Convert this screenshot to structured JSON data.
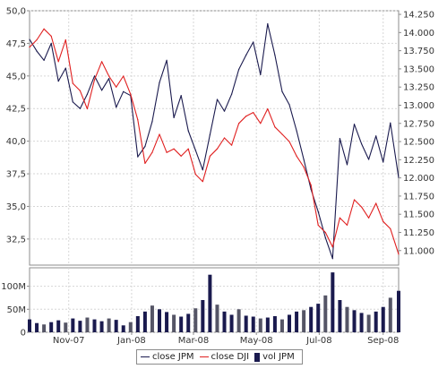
{
  "chart_data": [
    {
      "type": "line",
      "x_range": [
        "2007-09-24",
        "2008-09-16"
      ],
      "x_tick_labels": [
        "Nov-07",
        "Jan-08",
        "Mar-08",
        "May-08",
        "Jul-08",
        "Sep-08"
      ],
      "ylim": [
        30.5,
        50
      ],
      "y_ticks": [
        "32,5",
        "35,0",
        "37,5",
        "40,0",
        "42,5",
        "45,0",
        "47,5",
        "50,0"
      ],
      "y2lim": [
        10.8,
        14.3
      ],
      "y2_ticks": [
        "11.000",
        "11.250",
        "11.500",
        "11.750",
        "12.000",
        "12.250",
        "12.500",
        "12.750",
        "13.000",
        "13.250",
        "13.500",
        "13.750",
        "14.000",
        "14.250"
      ],
      "grid": true,
      "series": [
        {
          "name": "close JPM",
          "axis": "left",
          "color": "#1a1a4e",
          "points": [
            [
              "2007-09-24",
              47.8
            ],
            [
              "2007-10-01",
              46.9
            ],
            [
              "2007-10-08",
              46.2
            ],
            [
              "2007-10-15",
              47.5
            ],
            [
              "2007-10-22",
              44.6
            ],
            [
              "2007-10-29",
              45.6
            ],
            [
              "2007-11-05",
              43.0
            ],
            [
              "2007-11-12",
              42.5
            ],
            [
              "2007-11-19",
              43.6
            ],
            [
              "2007-11-26",
              45.0
            ],
            [
              "2007-12-03",
              43.9
            ],
            [
              "2007-12-10",
              44.8
            ],
            [
              "2007-12-17",
              42.6
            ],
            [
              "2007-12-24",
              43.8
            ],
            [
              "2007-12-31",
              43.5
            ],
            [
              "2008-01-07",
              38.8
            ],
            [
              "2008-01-14",
              39.6
            ],
            [
              "2008-01-21",
              41.5
            ],
            [
              "2008-01-28",
              44.5
            ],
            [
              "2008-02-04",
              46.2
            ],
            [
              "2008-02-11",
              41.8
            ],
            [
              "2008-02-18",
              43.5
            ],
            [
              "2008-02-25",
              40.8
            ],
            [
              "2008-03-03",
              39.3
            ],
            [
              "2008-03-10",
              37.8
            ],
            [
              "2008-03-17",
              40.5
            ],
            [
              "2008-03-24",
              43.2
            ],
            [
              "2008-03-31",
              42.3
            ],
            [
              "2008-04-07",
              43.6
            ],
            [
              "2008-04-14",
              45.5
            ],
            [
              "2008-04-21",
              46.6
            ],
            [
              "2008-04-28",
              47.6
            ],
            [
              "2008-05-05",
              45.1
            ],
            [
              "2008-05-12",
              49.0
            ],
            [
              "2008-05-19",
              46.6
            ],
            [
              "2008-05-26",
              43.8
            ],
            [
              "2008-06-02",
              42.8
            ],
            [
              "2008-06-09",
              40.8
            ],
            [
              "2008-06-16",
              38.6
            ],
            [
              "2008-06-23",
              36.3
            ],
            [
              "2008-06-30",
              34.6
            ],
            [
              "2008-07-07",
              32.6
            ],
            [
              "2008-07-14",
              31.0
            ],
            [
              "2008-07-21",
              40.2
            ],
            [
              "2008-07-28",
              38.2
            ],
            [
              "2008-08-04",
              41.3
            ],
            [
              "2008-08-11",
              39.8
            ],
            [
              "2008-08-18",
              38.6
            ],
            [
              "2008-08-25",
              40.4
            ],
            [
              "2008-09-01",
              38.4
            ],
            [
              "2008-09-08",
              41.4
            ],
            [
              "2008-09-16",
              37.2
            ]
          ]
        },
        {
          "name": "close DJI",
          "axis": "right",
          "color": "#e02020",
          "points": [
            [
              "2007-09-24",
              13.8
            ],
            [
              "2007-10-01",
              13.9
            ],
            [
              "2007-10-08",
              14.05
            ],
            [
              "2007-10-15",
              13.95
            ],
            [
              "2007-10-22",
              13.6
            ],
            [
              "2007-10-29",
              13.9
            ],
            [
              "2007-11-05",
              13.3
            ],
            [
              "2007-11-12",
              13.2
            ],
            [
              "2007-11-19",
              12.95
            ],
            [
              "2007-11-26",
              13.35
            ],
            [
              "2007-12-03",
              13.6
            ],
            [
              "2007-12-10",
              13.4
            ],
            [
              "2007-12-17",
              13.25
            ],
            [
              "2007-12-24",
              13.4
            ],
            [
              "2007-12-31",
              13.15
            ],
            [
              "2008-01-07",
              12.8
            ],
            [
              "2008-01-14",
              12.2
            ],
            [
              "2008-01-21",
              12.35
            ],
            [
              "2008-01-28",
              12.6
            ],
            [
              "2008-02-04",
              12.35
            ],
            [
              "2008-02-11",
              12.4
            ],
            [
              "2008-02-18",
              12.3
            ],
            [
              "2008-02-25",
              12.4
            ],
            [
              "2008-03-03",
              12.05
            ],
            [
              "2008-03-10",
              11.95
            ],
            [
              "2008-03-17",
              12.3
            ],
            [
              "2008-03-24",
              12.4
            ],
            [
              "2008-03-31",
              12.55
            ],
            [
              "2008-04-07",
              12.45
            ],
            [
              "2008-04-14",
              12.75
            ],
            [
              "2008-04-21",
              12.85
            ],
            [
              "2008-04-28",
              12.9
            ],
            [
              "2008-05-05",
              12.75
            ],
            [
              "2008-05-12",
              12.95
            ],
            [
              "2008-05-19",
              12.7
            ],
            [
              "2008-05-26",
              12.6
            ],
            [
              "2008-06-02",
              12.5
            ],
            [
              "2008-06-09",
              12.3
            ],
            [
              "2008-06-16",
              12.15
            ],
            [
              "2008-06-23",
              11.9
            ],
            [
              "2008-06-30",
              11.35
            ],
            [
              "2008-07-07",
              11.25
            ],
            [
              "2008-07-14",
              11.05
            ],
            [
              "2008-07-21",
              11.45
            ],
            [
              "2008-07-28",
              11.35
            ],
            [
              "2008-08-04",
              11.7
            ],
            [
              "2008-08-11",
              11.6
            ],
            [
              "2008-08-18",
              11.45
            ],
            [
              "2008-08-25",
              11.65
            ],
            [
              "2008-09-01",
              11.4
            ],
            [
              "2008-09-08",
              11.3
            ],
            [
              "2008-09-16",
              10.95
            ]
          ]
        }
      ]
    },
    {
      "type": "bar",
      "x_range": [
        "2007-09-24",
        "2008-09-16"
      ],
      "ylim": [
        0,
        140000000
      ],
      "y_ticks": [
        "0",
        "50M",
        "100M"
      ],
      "grid": true,
      "series": [
        {
          "name": "vol JPM",
          "color": "#1a1a4e",
          "points": [
            [
              "2007-09-24",
              28000000
            ],
            [
              "2007-10-01",
              20000000
            ],
            [
              "2007-10-08",
              17000000
            ],
            [
              "2007-10-15",
              22000000
            ],
            [
              "2007-10-22",
              26000000
            ],
            [
              "2007-10-29",
              21000000
            ],
            [
              "2007-11-05",
              30000000
            ],
            [
              "2007-11-12",
              25000000
            ],
            [
              "2007-11-19",
              32000000
            ],
            [
              "2007-11-26",
              28000000
            ],
            [
              "2007-12-03",
              24000000
            ],
            [
              "2007-12-10",
              30000000
            ],
            [
              "2007-12-17",
              27000000
            ],
            [
              "2007-12-24",
              15000000
            ],
            [
              "2007-12-31",
              22000000
            ],
            [
              "2008-01-07",
              35000000
            ],
            [
              "2008-01-14",
              45000000
            ],
            [
              "2008-01-21",
              58000000
            ],
            [
              "2008-01-28",
              50000000
            ],
            [
              "2008-02-04",
              44000000
            ],
            [
              "2008-02-11",
              38000000
            ],
            [
              "2008-02-18",
              34000000
            ],
            [
              "2008-02-25",
              40000000
            ],
            [
              "2008-03-03",
              52000000
            ],
            [
              "2008-03-10",
              70000000
            ],
            [
              "2008-03-17",
              125000000
            ],
            [
              "2008-03-24",
              60000000
            ],
            [
              "2008-03-31",
              45000000
            ],
            [
              "2008-04-07",
              38000000
            ],
            [
              "2008-04-14",
              50000000
            ],
            [
              "2008-04-21",
              36000000
            ],
            [
              "2008-04-28",
              34000000
            ],
            [
              "2008-05-05",
              30000000
            ],
            [
              "2008-05-12",
              32000000
            ],
            [
              "2008-05-19",
              35000000
            ],
            [
              "2008-05-26",
              28000000
            ],
            [
              "2008-06-02",
              38000000
            ],
            [
              "2008-06-09",
              45000000
            ],
            [
              "2008-06-16",
              48000000
            ],
            [
              "2008-06-23",
              55000000
            ],
            [
              "2008-06-30",
              62000000
            ],
            [
              "2008-07-07",
              80000000
            ],
            [
              "2008-07-14",
              130000000
            ],
            [
              "2008-07-21",
              70000000
            ],
            [
              "2008-07-28",
              55000000
            ],
            [
              "2008-08-04",
              48000000
            ],
            [
              "2008-08-11",
              42000000
            ],
            [
              "2008-08-18",
              38000000
            ],
            [
              "2008-08-25",
              45000000
            ],
            [
              "2008-09-01",
              55000000
            ],
            [
              "2008-09-08",
              75000000
            ],
            [
              "2008-09-16",
              90000000
            ]
          ]
        }
      ]
    }
  ],
  "legend": {
    "jpm_label": "close JPM",
    "dji_label": "close DJI",
    "vol_label": "vol JPM"
  },
  "colors": {
    "jpm": "#1a1a4e",
    "dji": "#e02020",
    "vol": "#1a1a4e",
    "vol_alt": "#555566",
    "grid": "#d6d6d6",
    "frame": "#8c8c8c"
  }
}
